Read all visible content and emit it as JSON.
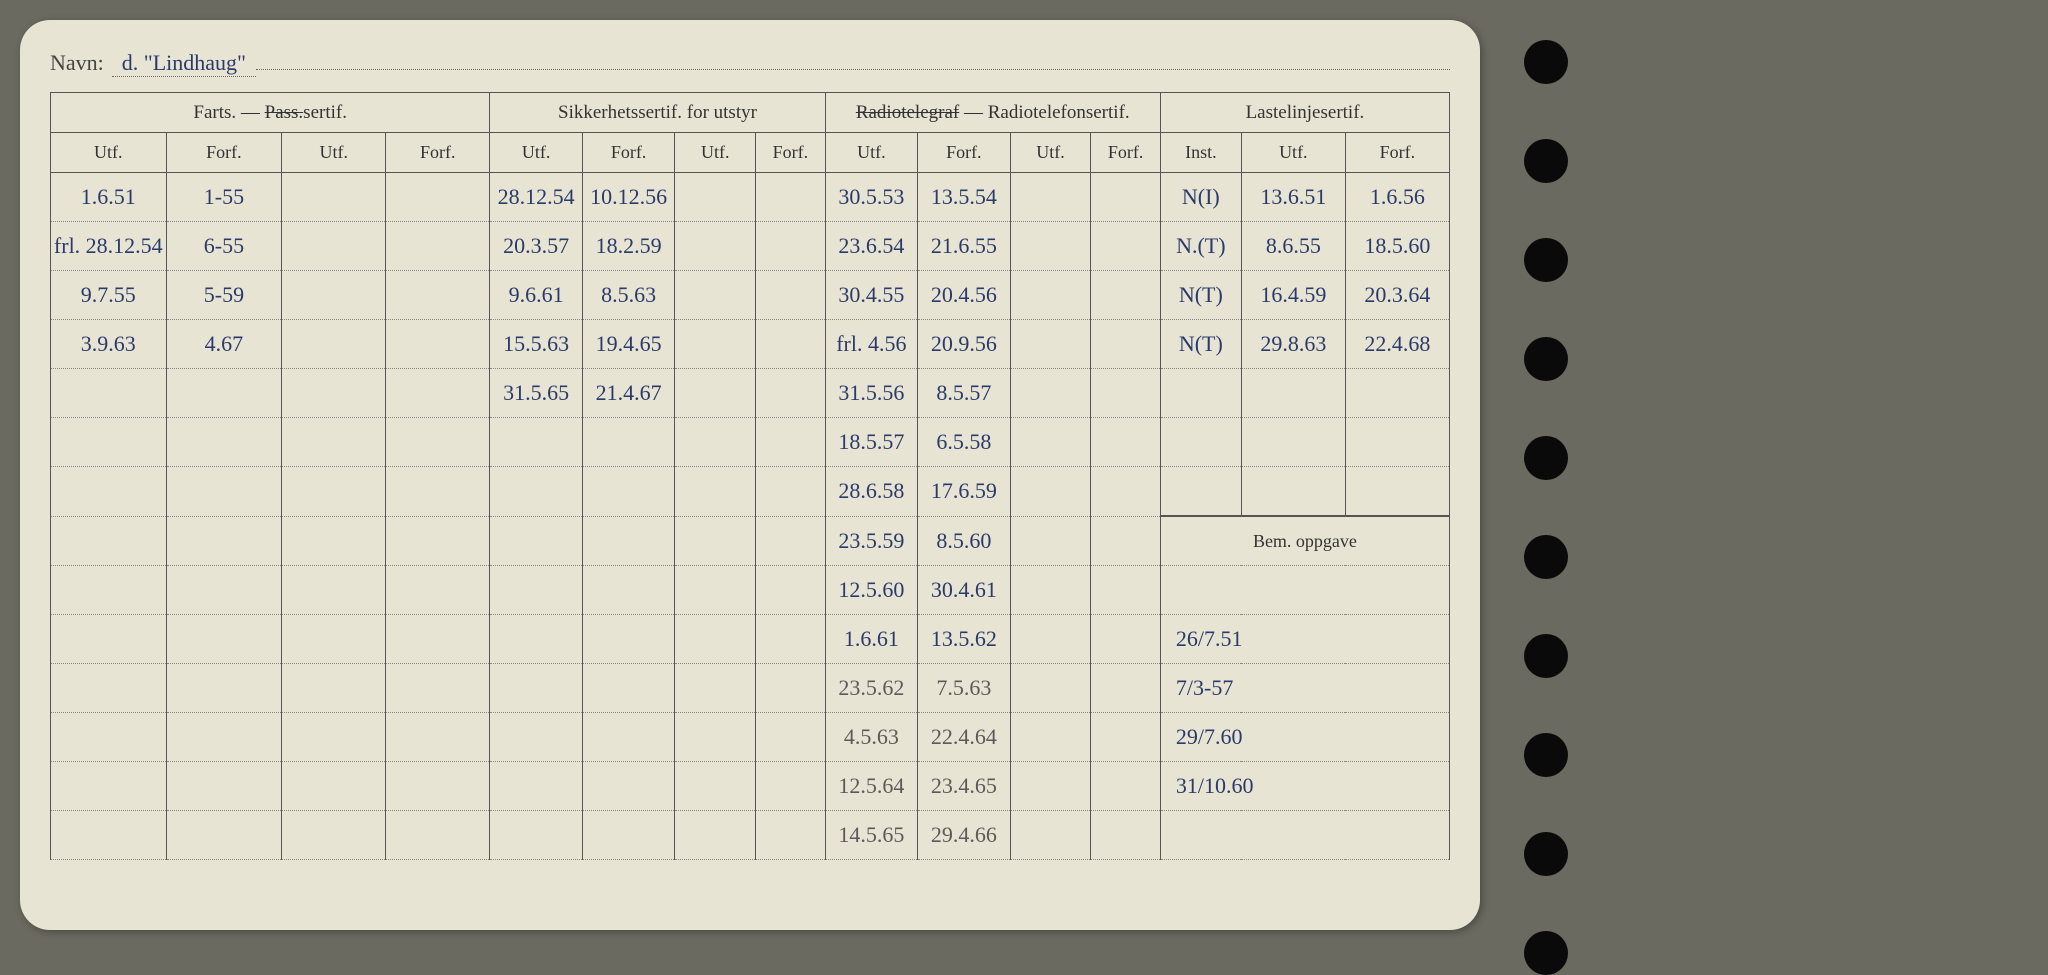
{
  "navn_label": "Navn:",
  "navn_value": "d. \"Lindhaug\"",
  "groups": {
    "farts": "Farts. — Pass.sertif.",
    "farts_struck_word": "Pass.",
    "sikkerhet": "Sikkerhetssertif. for utstyr",
    "radio_struck": "Radiotelegraf",
    "radio_dash": " — ",
    "radio_rest": "Radiotelefonsertif.",
    "laste": "Lastelinjesertif."
  },
  "sub": {
    "utf": "Utf.",
    "forf": "Forf.",
    "inst": "Inst."
  },
  "bem": "Bem. oppgave",
  "rows": [
    {
      "f1": "1.6.51",
      "f2": "1-55",
      "f3": "",
      "f4": "",
      "s1": "28.12.54",
      "s2": "10.12.56",
      "s3": "",
      "s4": "",
      "r1": "30.5.53",
      "r2": "13.5.54",
      "r3": "",
      "r4": "",
      "l1": "N(I)",
      "l2": "13.6.51",
      "l3": "1.6.56"
    },
    {
      "f1": "frl. 28.12.54",
      "f2": "6-55",
      "f3": "",
      "f4": "",
      "s1": "20.3.57",
      "s2": "18.2.59",
      "s3": "",
      "s4": "",
      "r1": "23.6.54",
      "r2": "21.6.55",
      "r3": "",
      "r4": "",
      "l1": "N.(T)",
      "l2": "8.6.55",
      "l3": "18.5.60"
    },
    {
      "f1": "9.7.55",
      "f2": "5-59",
      "f3": "",
      "f4": "",
      "s1": "9.6.61",
      "s2": "8.5.63",
      "s3": "",
      "s4": "",
      "r1": "30.4.55",
      "r2": "20.4.56",
      "r3": "",
      "r4": "",
      "l1": "N(T)",
      "l2": "16.4.59",
      "l3": "20.3.64"
    },
    {
      "f1": "3.9.63",
      "f2": "4.67",
      "f3": "",
      "f4": "",
      "s1": "15.5.63",
      "s2": "19.4.65",
      "s3": "",
      "s4": "",
      "r1": "frl. 4.56",
      "r2": "20.9.56",
      "r3": "",
      "r4": "",
      "l1": "N(T)",
      "l2": "29.8.63",
      "l3": "22.4.68"
    },
    {
      "f1": "",
      "f2": "",
      "f3": "",
      "f4": "",
      "s1": "31.5.65",
      "s2": "21.4.67",
      "s3": "",
      "s4": "",
      "r1": "31.5.56",
      "r2": "8.5.57",
      "r3": "",
      "r4": "",
      "l1": "",
      "l2": "",
      "l3": ""
    },
    {
      "f1": "",
      "f2": "",
      "f3": "",
      "f4": "",
      "s1": "",
      "s2": "",
      "s3": "",
      "s4": "",
      "r1": "18.5.57",
      "r2": "6.5.58",
      "r3": "",
      "r4": "",
      "l1": "",
      "l2": "",
      "l3": ""
    },
    {
      "f1": "",
      "f2": "",
      "f3": "",
      "f4": "",
      "s1": "",
      "s2": "",
      "s3": "",
      "s4": "",
      "r1": "28.6.58",
      "r2": "17.6.59",
      "r3": "",
      "r4": "",
      "l1": "",
      "l2": "",
      "l3": ""
    },
    {
      "f1": "",
      "f2": "",
      "f3": "",
      "f4": "",
      "s1": "",
      "s2": "",
      "s3": "",
      "s4": "",
      "r1": "23.5.59",
      "r2": "8.5.60",
      "r3": "",
      "r4": "",
      "bem_start": true
    },
    {
      "f1": "",
      "f2": "",
      "f3": "",
      "f4": "",
      "s1": "",
      "s2": "",
      "s3": "",
      "s4": "",
      "r1": "12.5.60",
      "r2": "30.4.61",
      "r3": "",
      "r4": "",
      "bem": ""
    },
    {
      "f1": "",
      "f2": "",
      "f3": "",
      "f4": "",
      "s1": "",
      "s2": "",
      "s3": "",
      "s4": "",
      "r1": "1.6.61",
      "r2": "13.5.62",
      "r3": "",
      "r4": "",
      "bem": "26/7.51"
    },
    {
      "f1": "",
      "f2": "",
      "f3": "",
      "f4": "",
      "s1": "",
      "s2": "",
      "s3": "",
      "s4": "",
      "r1": "23.5.62",
      "r2": "7.5.63",
      "r3": "",
      "r4": "",
      "bem": "7/3-57"
    },
    {
      "f1": "",
      "f2": "",
      "f3": "",
      "f4": "",
      "s1": "",
      "s2": "",
      "s3": "",
      "s4": "",
      "r1": "4.5.63",
      "r2": "22.4.64",
      "r3": "",
      "r4": "",
      "bem": "29/7.60"
    },
    {
      "f1": "",
      "f2": "",
      "f3": "",
      "f4": "",
      "s1": "",
      "s2": "",
      "s3": "",
      "s4": "",
      "r1": "12.5.64",
      "r2": "23.4.65",
      "r3": "",
      "r4": "",
      "bem": "31/10.60"
    },
    {
      "f1": "",
      "f2": "",
      "f3": "",
      "f4": "",
      "s1": "",
      "s2": "",
      "s3": "",
      "s4": "",
      "r1": "14.5.65",
      "r2": "29.4.66",
      "r3": "",
      "r4": "",
      "bem": ""
    }
  ],
  "colors": {
    "paper": "#e8e4d4",
    "bg": "#6a6a60",
    "ink_print": "#333333",
    "ink_hand": "#2a3a6a",
    "border": "#555555"
  },
  "col_widths": {
    "farts": [
      100,
      100,
      90,
      90
    ],
    "sikk": [
      80,
      80,
      70,
      60
    ],
    "radio": [
      80,
      80,
      70,
      60
    ],
    "laste": [
      70,
      90,
      90
    ]
  }
}
